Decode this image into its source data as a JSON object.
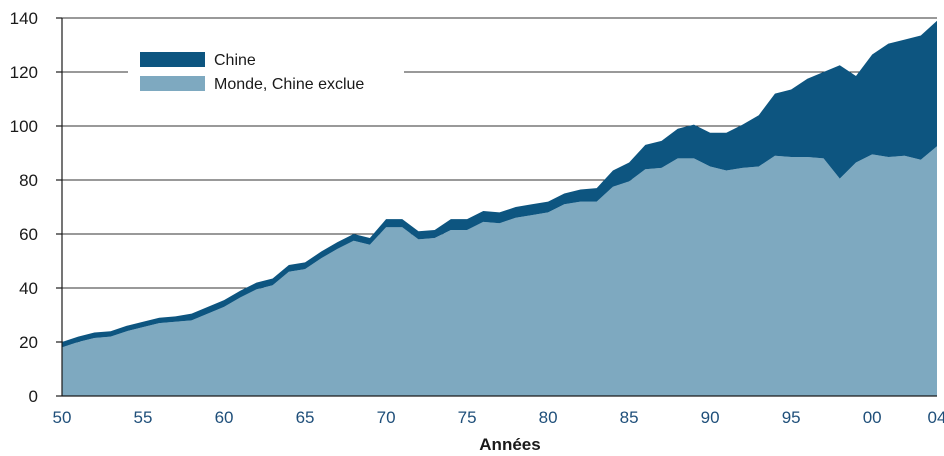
{
  "chart_data": {
    "type": "area",
    "stacked": true,
    "xlabel": "Années",
    "ylabel": "",
    "ylim": [
      0,
      140
    ],
    "yticks": [
      0,
      20,
      40,
      60,
      80,
      100,
      120,
      140
    ],
    "xlim": [
      1950,
      2004
    ],
    "x_tick_values": [
      1950,
      1955,
      1960,
      1965,
      1970,
      1975,
      1980,
      1985,
      1990,
      1995,
      2000,
      2004
    ],
    "x_tick_labels": [
      "50",
      "55",
      "60",
      "65",
      "70",
      "75",
      "80",
      "85",
      "90",
      "95",
      "00",
      "04"
    ],
    "grid": true,
    "legend_position": "top-left",
    "x": [
      1950,
      1951,
      1952,
      1953,
      1954,
      1955,
      1956,
      1957,
      1958,
      1959,
      1960,
      1961,
      1962,
      1963,
      1964,
      1965,
      1966,
      1967,
      1968,
      1969,
      1970,
      1971,
      1972,
      1973,
      1974,
      1975,
      1976,
      1977,
      1978,
      1979,
      1980,
      1981,
      1982,
      1983,
      1984,
      1985,
      1986,
      1987,
      1988,
      1989,
      1990,
      1991,
      1992,
      1993,
      1994,
      1995,
      1996,
      1997,
      1998,
      1999,
      2000,
      2001,
      2002,
      2003,
      2004
    ],
    "series": [
      {
        "name": "Monde, Chine exclue",
        "color": "#7ea9c0",
        "values": [
          18,
          20,
          21.5,
          22,
          24,
          25.5,
          27,
          27.5,
          28,
          30.5,
          33,
          36.5,
          39.5,
          41,
          46,
          47,
          51,
          54.5,
          57.5,
          56,
          62.5,
          62.5,
          58,
          58.5,
          61.5,
          61.5,
          64.5,
          64,
          66,
          67,
          68,
          71,
          72,
          72,
          77.5,
          79.5,
          84,
          84.5,
          88,
          88,
          85,
          83.5,
          84.5,
          85,
          89,
          88.5,
          88.5,
          88,
          80.5,
          86.5,
          89.5,
          88.5,
          89,
          87.5,
          92.5
        ]
      },
      {
        "name": "Chine",
        "color": "#0d5580",
        "values": [
          2,
          2,
          2,
          2,
          2,
          2,
          2,
          2,
          2.5,
          2.5,
          2.5,
          2.5,
          2.5,
          2.5,
          2.5,
          2.5,
          2.5,
          2.5,
          2.5,
          2.5,
          3,
          3,
          3,
          3,
          4,
          4,
          4,
          4,
          4,
          4,
          4,
          4,
          4.5,
          5,
          6,
          7,
          9,
          10,
          11,
          12.5,
          12.5,
          14,
          16,
          19,
          23,
          25,
          29,
          32,
          42,
          32,
          37,
          42,
          43,
          46,
          46.5
        ]
      }
    ]
  }
}
